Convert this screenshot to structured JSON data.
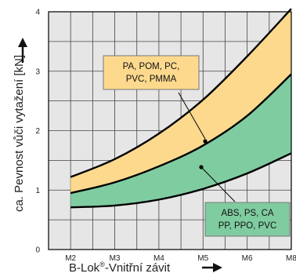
{
  "chart_data": {
    "type": "area",
    "title": "",
    "xlabel": "B-Lok",
    "xlabel_reg": "®",
    "xlabel_rest": "-Vnitřní závit",
    "ylabel": "ca. Pevnost vůči vytažení  [kN]",
    "categories": [
      "M2",
      "M3",
      "M4",
      "M5",
      "M6",
      "M8"
    ],
    "x": [
      0,
      1,
      2,
      3,
      4,
      5
    ],
    "xlim": [
      -0.5,
      5
    ],
    "ylim": [
      0,
      4
    ],
    "yticks": [
      "0",
      "1",
      "2",
      "3",
      "4"
    ],
    "grid": true,
    "series": [
      {
        "name": "PA, POM, PC, PVC, PMMA",
        "fill": "#fdd98e",
        "upper": [
          1.22,
          1.52,
          1.95,
          2.52,
          3.25,
          4.05
        ],
        "lower": [
          0.95,
          1.13,
          1.4,
          1.75,
          2.25,
          2.95
        ]
      },
      {
        "name": "ABS, PS, CA PP, PPO, PVC",
        "fill": "#7fcca0",
        "upper": [
          0.95,
          1.13,
          1.4,
          1.75,
          2.25,
          2.95
        ],
        "lower": [
          0.71,
          0.74,
          0.84,
          1.02,
          1.28,
          1.62
        ]
      }
    ],
    "annotations": [
      {
        "lines": [
          "PA, POM, PC,",
          "PVC, PMMA"
        ],
        "points_to": "upper band"
      },
      {
        "lines": [
          "ABS, PS, CA",
          "PP, PPO, PVC"
        ],
        "points_to": "lower band"
      }
    ]
  }
}
